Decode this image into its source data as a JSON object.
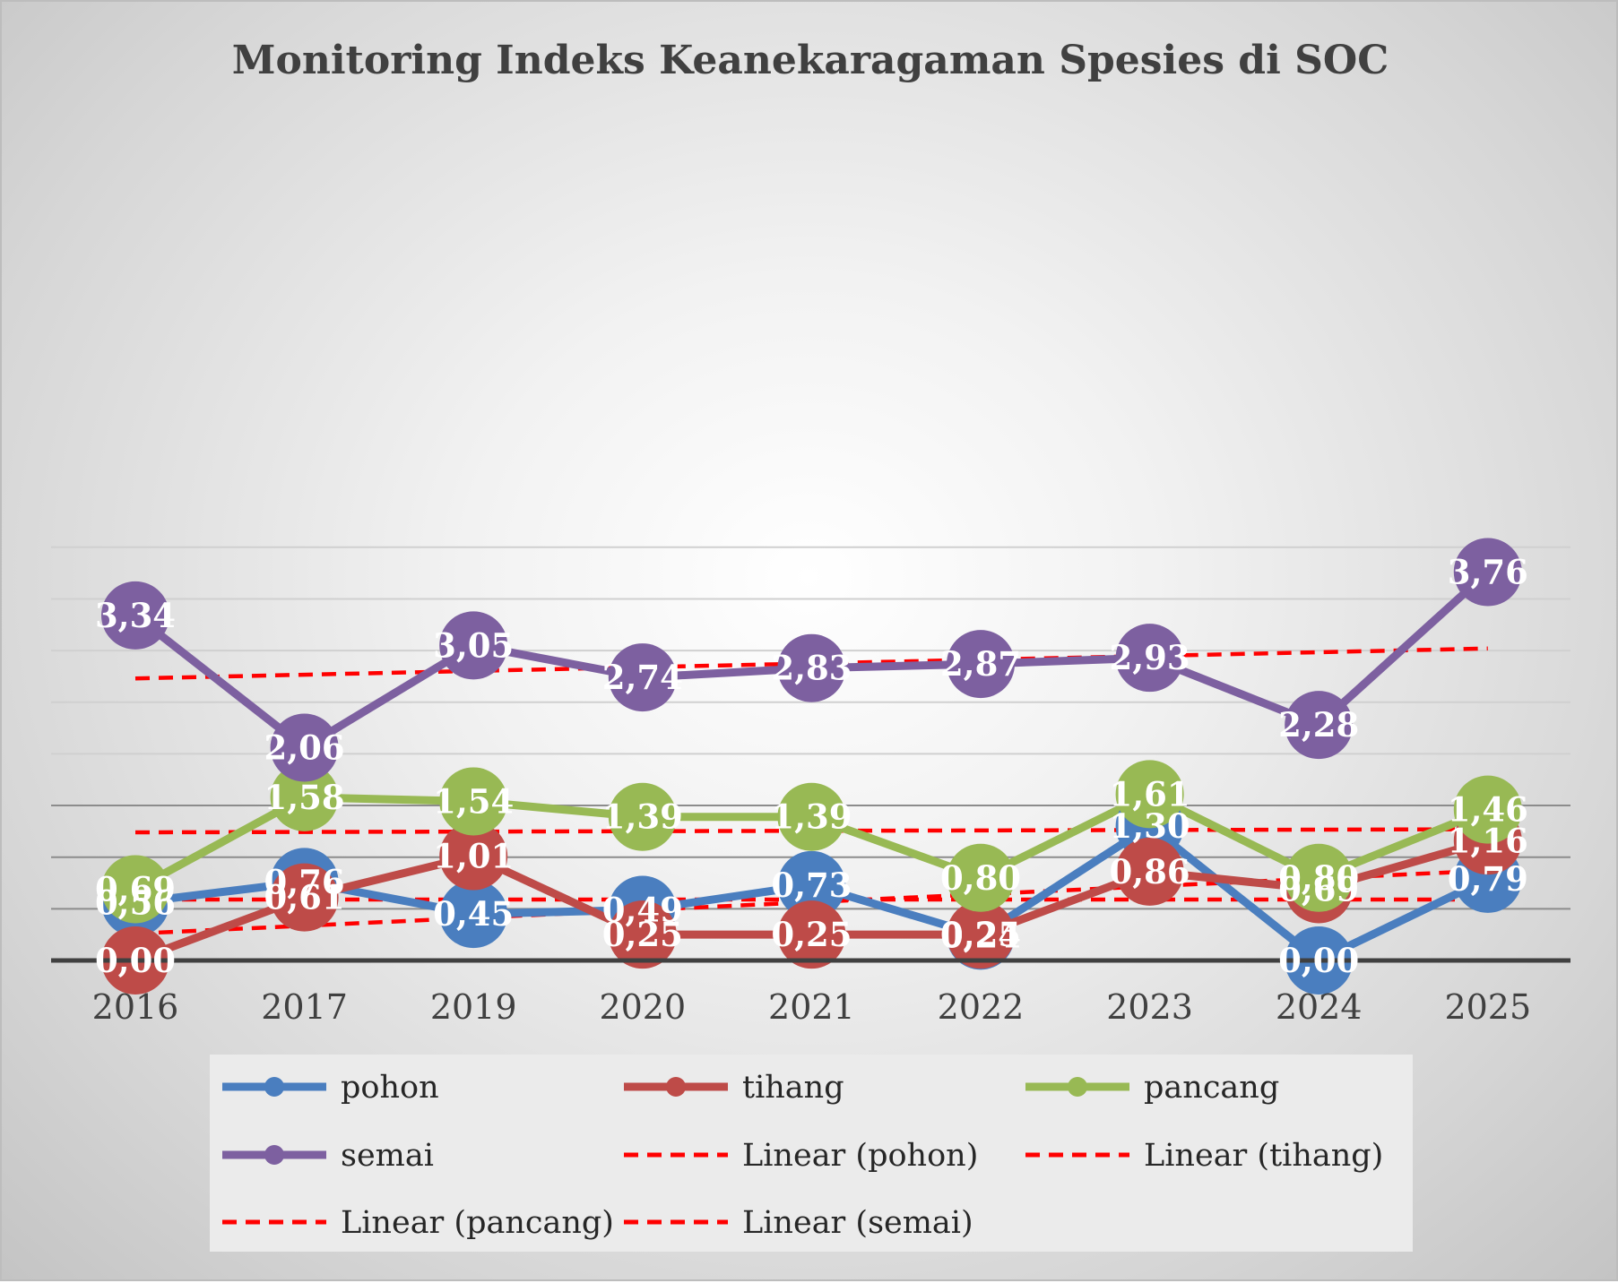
{
  "chart_data": {
    "type": "line",
    "title": "Monitoring Indeks Keanekaragaman Spesies di SOC",
    "xlabel": "",
    "ylabel": "",
    "categories": [
      "2016",
      "2017",
      "2019",
      "2020",
      "2021",
      "2022",
      "2023",
      "2024",
      "2025"
    ],
    "ylim": [
      0,
      4
    ],
    "grid": true,
    "legend_placement": "bottom",
    "series": [
      {
        "name": "pohon",
        "color": "#4a7ebf",
        "values": [
          0.56,
          0.76,
          0.45,
          0.49,
          0.73,
          0.24,
          1.3,
          0.0,
          0.79
        ],
        "labels": [
          "0,56",
          "0,76",
          "0,45",
          "0,49",
          "0,73",
          "0,24",
          "1,30",
          "0,00",
          "0,79"
        ]
      },
      {
        "name": "tihang",
        "color": "#be4b48",
        "values": [
          0.0,
          0.61,
          1.01,
          0.25,
          0.25,
          0.25,
          0.86,
          0.69,
          1.16
        ],
        "labels": [
          "0,00",
          "0,61",
          "1,01",
          "0,25",
          "0,25",
          "0,25",
          "0,86",
          "0,69",
          "1,16"
        ]
      },
      {
        "name": "pancang",
        "color": "#98b954",
        "values": [
          0.69,
          1.58,
          1.54,
          1.39,
          1.39,
          0.8,
          1.61,
          0.8,
          1.46
        ],
        "labels": [
          "0,69",
          "1,58",
          "1,54",
          "1,39",
          "1,39",
          "0,80",
          "1,61",
          "0,80",
          "1,46"
        ]
      },
      {
        "name": "semai",
        "color": "#7d60a0",
        "values": [
          3.34,
          2.06,
          3.05,
          2.74,
          2.83,
          2.87,
          2.93,
          2.28,
          3.76
        ],
        "labels": [
          "3,34",
          "2,06",
          "3,05",
          "2,74",
          "2,83",
          "2,87",
          "2,93",
          "2,28",
          "3,76"
        ]
      }
    ],
    "trendlines": [
      {
        "name": "Linear (pohon)",
        "color": "#ff0000",
        "style": "dashed",
        "start": 0.59,
        "end": 0.59
      },
      {
        "name": "Linear (tihang)",
        "color": "#ff0000",
        "style": "dashed",
        "start": 0.26,
        "end": 0.87
      },
      {
        "name": "Linear (pancang)",
        "color": "#ff0000",
        "style": "dashed",
        "start": 1.24,
        "end": 1.27
      },
      {
        "name": "Linear (semai)",
        "color": "#ff0000",
        "style": "dashed",
        "start": 2.73,
        "end": 3.02
      }
    ]
  }
}
